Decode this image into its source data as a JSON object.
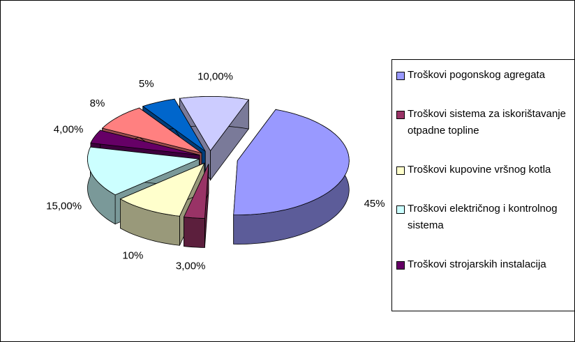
{
  "chart_data": {
    "type": "pie",
    "categories": [
      "Troškovi pogonskog agregata",
      "Troškovi sistema za iskorištavanje otpadne topline",
      "Troškovi kupovine vršnog kotla",
      "Troškovi električnog i kontrolnog sistema",
      "Troškovi strojarskih instalacija",
      null,
      null,
      null
    ],
    "values": [
      45,
      3,
      10,
      15,
      4,
      8,
      5,
      10
    ],
    "value_labels": [
      "45%",
      "3,00%",
      "10%",
      "15,00%",
      "4,00%",
      "8%",
      "5%",
      "10,00%"
    ],
    "colors": [
      "#9999ff",
      "#993366",
      "#ffffcc",
      "#ccffff",
      "#660066",
      "#ff8080",
      "#0066cc",
      "#ccccff"
    ]
  }
}
